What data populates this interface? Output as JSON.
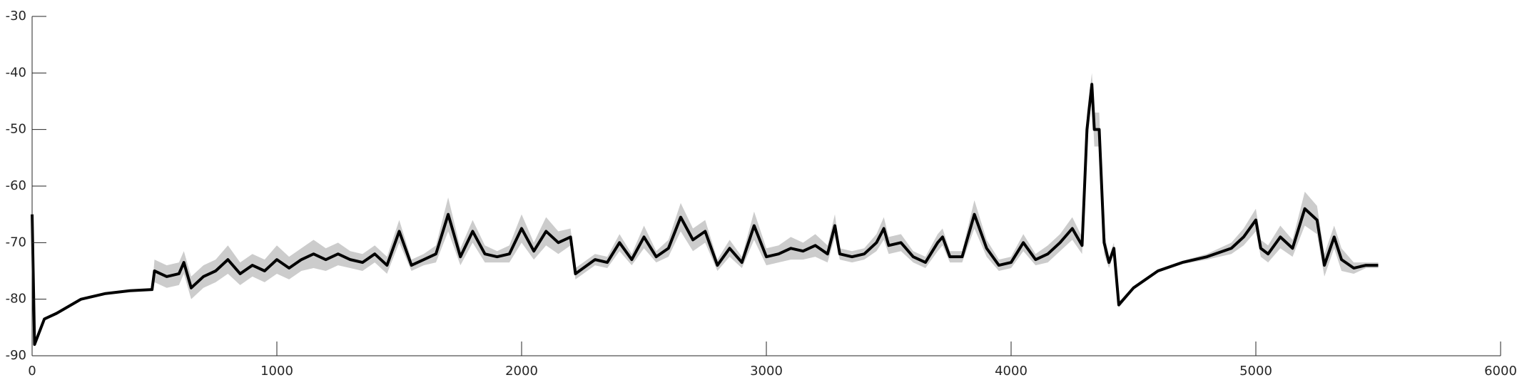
{
  "chart_data": {
    "type": "line",
    "x": [
      0,
      10,
      50,
      100,
      200,
      300,
      400,
      490,
      500,
      550,
      600,
      620,
      650,
      700,
      750,
      800,
      850,
      900,
      950,
      1000,
      1050,
      1100,
      1150,
      1200,
      1250,
      1300,
      1350,
      1400,
      1450,
      1500,
      1550,
      1600,
      1650,
      1700,
      1750,
      1800,
      1850,
      1900,
      1950,
      2000,
      2050,
      2100,
      2150,
      2200,
      2220,
      2300,
      2350,
      2400,
      2450,
      2500,
      2550,
      2600,
      2650,
      2700,
      2750,
      2800,
      2850,
      2900,
      2950,
      3000,
      3050,
      3100,
      3150,
      3200,
      3250,
      3280,
      3300,
      3350,
      3400,
      3450,
      3480,
      3500,
      3550,
      3600,
      3650,
      3700,
      3720,
      3750,
      3800,
      3850,
      3900,
      3950,
      4000,
      4050,
      4100,
      4150,
      4200,
      4250,
      4290,
      4310,
      4330,
      4340,
      4360,
      4380,
      4400,
      4420,
      4440,
      4500,
      4600,
      4700,
      4800,
      4900,
      4950,
      5000,
      5020,
      5050,
      5100,
      5150,
      5200,
      5250,
      5280,
      5320,
      5350,
      5400,
      5450,
      5500
    ],
    "values": [
      -65,
      -88,
      -83.5,
      -82.5,
      -80,
      -79,
      -78.5,
      -78.3,
      -75,
      -76,
      -75.5,
      -73.5,
      -78,
      -76,
      -75,
      -73,
      -75.5,
      -74,
      -75,
      -73,
      -74.5,
      -73,
      -72,
      -73,
      -72,
      -73,
      -73.5,
      -72,
      -74,
      -68,
      -74,
      -73,
      -72,
      -65,
      -72.5,
      -68,
      -72,
      -72.5,
      -72,
      -67.5,
      -71.5,
      -68,
      -70,
      -69,
      -75.5,
      -73,
      -73.5,
      -70,
      -73,
      -69,
      -72.5,
      -71,
      -65.5,
      -69.5,
      -68,
      -74,
      -71,
      -73.5,
      -67,
      -72.5,
      -72,
      -71,
      -71.5,
      -70.5,
      -72,
      -67,
      -72,
      -72.5,
      -72,
      -70,
      -67.5,
      -70.5,
      -70,
      -72.5,
      -73.5,
      -70,
      -69,
      -72.5,
      -72.5,
      -65,
      -71,
      -74,
      -73.5,
      -70,
      -73,
      -72,
      -70,
      -67.5,
      -70.5,
      -50,
      -42,
      -50,
      -50,
      -70,
      -73.5,
      -71,
      -81,
      -78,
      -75,
      -73.5,
      -72.5,
      -71,
      -69,
      -66,
      -71,
      -72,
      -69,
      -71,
      -64,
      -66,
      -74,
      -69,
      -73,
      -74.5,
      -74,
      -74
    ],
    "errors": [
      0,
      0,
      0,
      0,
      0,
      0,
      0,
      0,
      2,
      2,
      2,
      2,
      2,
      2,
      2,
      2.5,
      2,
      2,
      2,
      2.5,
      2,
      2,
      2.5,
      2,
      2,
      1.5,
      1.5,
      1.5,
      1.5,
      2,
      1,
      1,
      1.5,
      3,
      1.5,
      2,
      1.5,
      1,
      1.5,
      2.5,
      1.5,
      2.5,
      2,
      1.5,
      1,
      1,
      1,
      1.5,
      1,
      2,
      1,
      1.5,
      2.5,
      2,
      2,
      1,
      1.5,
      1,
      2.5,
      1.5,
      1.5,
      2,
      1.5,
      2,
      1.5,
      2,
      1,
      1,
      1,
      1.5,
      2,
      1.5,
      1.5,
      1,
      1,
      1.5,
      1.5,
      1,
      1,
      2.5,
      1.5,
      1,
      1,
      1.5,
      1,
      1.5,
      1.5,
      2,
      1.5,
      3,
      2,
      3,
      3,
      2,
      1,
      1,
      0.5,
      0.3,
      0.3,
      0.3,
      0.5,
      1,
      1.5,
      2,
      1.5,
      1.5,
      2,
      1.5,
      3,
      2.5,
      2,
      2,
      2,
      1,
      0.5,
      0.5
    ],
    "color": "#000000",
    "band_color": "#cccccc",
    "xlim": [
      0,
      6000
    ],
    "xticks": [
      0,
      1000,
      2000,
      3000,
      4000,
      5000,
      6000
    ],
    "ylim": [
      -90,
      -30
    ],
    "yticks": [
      -90,
      -80,
      -70,
      -60,
      -50,
      -40,
      -30
    ]
  }
}
